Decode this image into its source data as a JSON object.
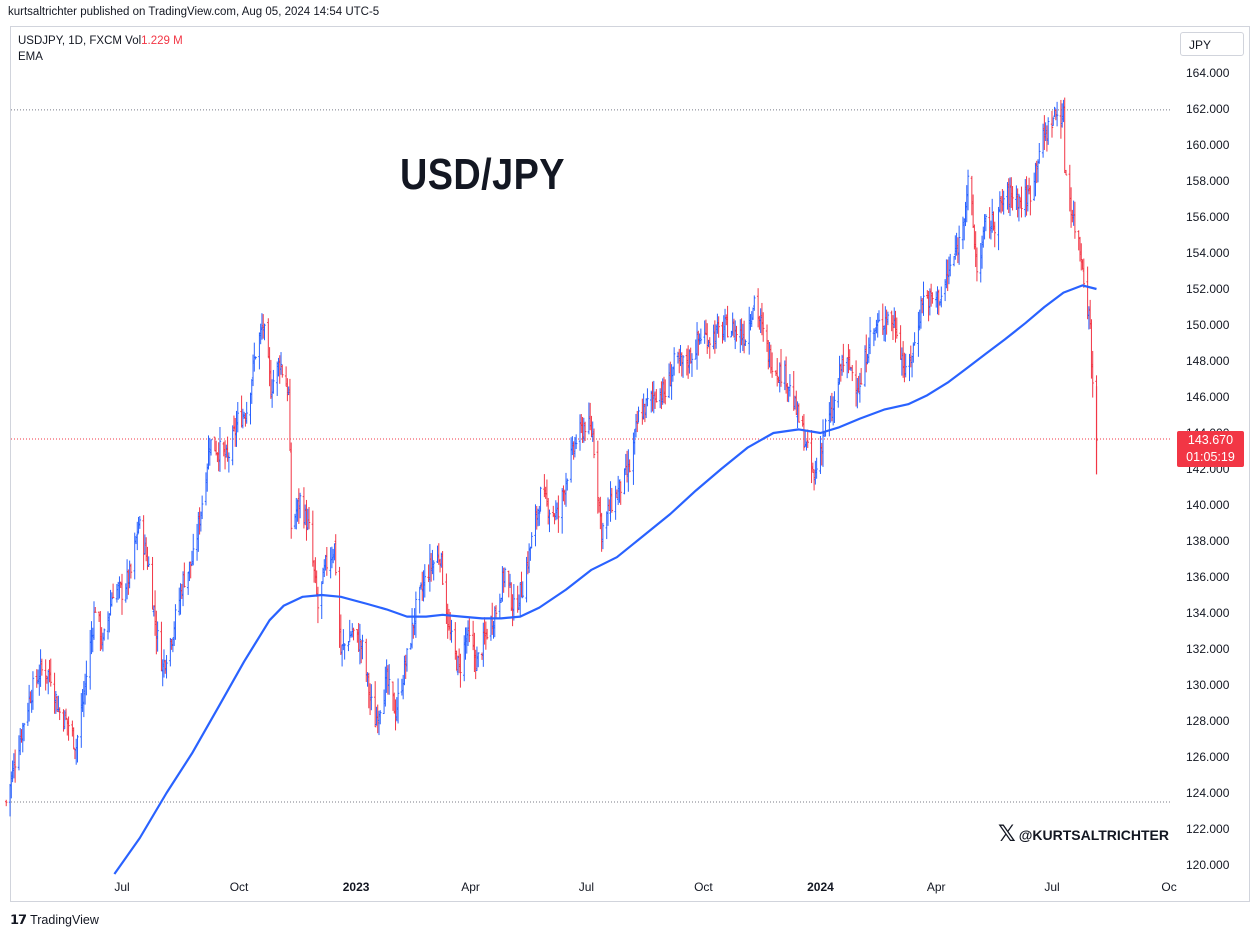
{
  "header": {
    "published": "kurtsaltrichter published on TradingView.com, Aug 05, 2024 14:54 UTC-5"
  },
  "symbol": {
    "name": "USDJPY, 1D, FXCM",
    "vol_label": "Vol",
    "vol_value": "1.229 M"
  },
  "indicator": "EMA",
  "currency_button": "JPY",
  "price_tag": {
    "price": "143.670",
    "countdown": "01:05:19"
  },
  "watermark": {
    "icon": "x-logo-icon",
    "handle": "@KURTSALTRICHTER"
  },
  "footer": {
    "icon": "tradingview-logo-icon",
    "brand": "TradingView"
  },
  "colors": {
    "up": "#2962ff",
    "down": "#f23645",
    "ema": "#2962ff",
    "grid_dotted": "#787b86"
  },
  "chart_data": {
    "type": "line",
    "title": "USD/JPY",
    "xlabel": "",
    "ylabel": "",
    "ylim": [
      119,
      165
    ],
    "y_ticks": [
      "120.000",
      "122.000",
      "124.000",
      "126.000",
      "128.000",
      "130.000",
      "132.000",
      "134.000",
      "136.000",
      "138.000",
      "140.000",
      "142.000",
      "144.000",
      "146.000",
      "148.000",
      "150.000",
      "152.000",
      "154.000",
      "156.000",
      "158.000",
      "160.000",
      "162.000",
      "164.000"
    ],
    "x_ticks": [
      {
        "date": "2022-07-01",
        "label": "Jul",
        "bold": false
      },
      {
        "date": "2022-10-01",
        "label": "Oct",
        "bold": false
      },
      {
        "date": "2023-01-01",
        "label": "2023",
        "bold": true
      },
      {
        "date": "2023-04-01",
        "label": "Apr",
        "bold": false
      },
      {
        "date": "2023-07-01",
        "label": "Jul",
        "bold": false
      },
      {
        "date": "2023-10-01",
        "label": "Oct",
        "bold": false
      },
      {
        "date": "2024-01-01",
        "label": "2024",
        "bold": true
      },
      {
        "date": "2024-04-01",
        "label": "Apr",
        "bold": false
      },
      {
        "date": "2024-07-01",
        "label": "Jul",
        "bold": false
      },
      {
        "date": "2024-10-01",
        "label": "Oc",
        "bold": false
      }
    ],
    "xlim": [
      "2022-04-01",
      "2024-11-20"
    ],
    "horizontal_lines": [
      {
        "y": 161.95,
        "style": "dotted",
        "color": "#787b86"
      },
      {
        "y": 123.5,
        "style": "dotted",
        "color": "#787b86"
      },
      {
        "y": 143.67,
        "style": "dotted",
        "color": "#f23645"
      }
    ],
    "series": [
      {
        "name": "USDJPY",
        "style": "ohlc-bars",
        "points": [
          [
            "2022-04-01",
            123.5
          ],
          [
            "2022-04-10",
            126.5
          ],
          [
            "2022-04-20",
            129.5
          ],
          [
            "2022-04-28",
            130.8
          ],
          [
            "2022-05-06",
            130.6
          ],
          [
            "2022-05-12",
            128.6
          ],
          [
            "2022-05-20",
            127.8
          ],
          [
            "2022-05-26",
            126.6
          ],
          [
            "2022-06-02",
            130.0
          ],
          [
            "2022-06-10",
            134.4
          ],
          [
            "2022-06-16",
            132.2
          ],
          [
            "2022-06-24",
            135.3
          ],
          [
            "2022-07-01",
            135.2
          ],
          [
            "2022-07-08",
            136.2
          ],
          [
            "2022-07-14",
            139.0
          ],
          [
            "2022-07-22",
            136.6
          ],
          [
            "2022-07-28",
            133.0
          ],
          [
            "2022-08-02",
            131.0
          ],
          [
            "2022-08-10",
            133.0
          ],
          [
            "2022-08-18",
            135.8
          ],
          [
            "2022-08-26",
            137.0
          ],
          [
            "2022-09-02",
            140.2
          ],
          [
            "2022-09-08",
            143.5
          ],
          [
            "2022-09-16",
            143.0
          ],
          [
            "2022-09-22",
            142.5
          ],
          [
            "2022-09-30",
            144.7
          ],
          [
            "2022-10-07",
            145.3
          ],
          [
            "2022-10-14",
            148.5
          ],
          [
            "2022-10-20",
            150.0
          ],
          [
            "2022-10-26",
            146.5
          ],
          [
            "2022-11-02",
            148.0
          ],
          [
            "2022-11-09",
            146.2
          ],
          [
            "2022-11-11",
            138.8
          ],
          [
            "2022-11-18",
            140.3
          ],
          [
            "2022-11-25",
            138.6
          ],
          [
            "2022-12-02",
            134.3
          ],
          [
            "2022-12-08",
            136.6
          ],
          [
            "2022-12-15",
            137.7
          ],
          [
            "2022-12-20",
            131.8
          ],
          [
            "2022-12-29",
            133.0
          ],
          [
            "2023-01-06",
            132.0
          ],
          [
            "2023-01-12",
            129.2
          ],
          [
            "2023-01-16",
            128.0
          ],
          [
            "2023-01-25",
            130.2
          ],
          [
            "2023-02-01",
            128.5
          ],
          [
            "2023-02-10",
            131.5
          ],
          [
            "2023-02-17",
            134.2
          ],
          [
            "2023-02-27",
            136.4
          ],
          [
            "2023-03-08",
            137.3
          ],
          [
            "2023-03-15",
            133.0
          ],
          [
            "2023-03-23",
            130.8
          ],
          [
            "2023-03-29",
            132.8
          ],
          [
            "2023-04-06",
            131.2
          ],
          [
            "2023-04-14",
            133.0
          ],
          [
            "2023-04-21",
            134.2
          ],
          [
            "2023-04-28",
            136.3
          ],
          [
            "2023-05-05",
            134.2
          ],
          [
            "2023-05-12",
            135.5
          ],
          [
            "2023-05-19",
            138.0
          ],
          [
            "2023-05-26",
            140.5
          ],
          [
            "2023-06-02",
            139.8
          ],
          [
            "2023-06-09",
            139.4
          ],
          [
            "2023-06-16",
            141.8
          ],
          [
            "2023-06-23",
            143.6
          ],
          [
            "2023-06-30",
            144.5
          ],
          [
            "2023-07-06",
            144.0
          ],
          [
            "2023-07-13",
            138.5
          ],
          [
            "2023-07-20",
            140.0
          ],
          [
            "2023-07-28",
            141.0
          ],
          [
            "2023-08-04",
            142.0
          ],
          [
            "2023-08-11",
            144.9
          ],
          [
            "2023-08-18",
            145.6
          ],
          [
            "2023-08-25",
            146.3
          ],
          [
            "2023-09-01",
            146.2
          ],
          [
            "2023-09-08",
            147.8
          ],
          [
            "2023-09-15",
            147.8
          ],
          [
            "2023-09-22",
            148.4
          ],
          [
            "2023-09-29",
            149.4
          ],
          [
            "2023-10-06",
            149.3
          ],
          [
            "2023-10-13",
            149.6
          ],
          [
            "2023-10-20",
            149.9
          ],
          [
            "2023-10-27",
            149.6
          ],
          [
            "2023-11-03",
            149.4
          ],
          [
            "2023-11-10",
            151.5
          ],
          [
            "2023-11-14",
            150.3
          ],
          [
            "2023-11-21",
            148.4
          ],
          [
            "2023-11-28",
            147.5
          ],
          [
            "2023-12-05",
            147.2
          ],
          [
            "2023-12-12",
            145.4
          ],
          [
            "2023-12-19",
            143.8
          ],
          [
            "2023-12-27",
            141.4
          ],
          [
            "2024-01-04",
            144.2
          ],
          [
            "2024-01-11",
            145.2
          ],
          [
            "2024-01-18",
            148.0
          ],
          [
            "2024-01-25",
            147.6
          ],
          [
            "2024-02-01",
            146.4
          ],
          [
            "2024-02-08",
            149.2
          ],
          [
            "2024-02-15",
            149.9
          ],
          [
            "2024-02-22",
            150.5
          ],
          [
            "2024-03-01",
            149.9
          ],
          [
            "2024-03-08",
            147.1
          ],
          [
            "2024-03-15",
            149.0
          ],
          [
            "2024-03-21",
            151.5
          ],
          [
            "2024-03-28",
            151.4
          ],
          [
            "2024-04-05",
            151.6
          ],
          [
            "2024-04-12",
            153.2
          ],
          [
            "2024-04-19",
            154.6
          ],
          [
            "2024-04-26",
            157.8
          ],
          [
            "2024-04-29",
            156.2
          ],
          [
            "2024-05-03",
            153.0
          ],
          [
            "2024-05-10",
            155.6
          ],
          [
            "2024-05-17",
            155.7
          ],
          [
            "2024-05-24",
            157.0
          ],
          [
            "2024-05-31",
            157.3
          ],
          [
            "2024-06-07",
            156.8
          ],
          [
            "2024-06-14",
            157.4
          ],
          [
            "2024-06-21",
            159.8
          ],
          [
            "2024-06-28",
            160.9
          ],
          [
            "2024-07-03",
            161.7
          ],
          [
            "2024-07-10",
            161.6
          ],
          [
            "2024-07-11",
            158.9
          ],
          [
            "2024-07-17",
            156.2
          ],
          [
            "2024-07-24",
            153.9
          ],
          [
            "2024-07-31",
            150.0
          ],
          [
            "2024-08-02",
            146.5
          ],
          [
            "2024-08-05",
            143.67
          ]
        ]
      },
      {
        "name": "EMA",
        "style": "line",
        "points": [
          [
            "2022-06-25",
            119.5
          ],
          [
            "2022-07-15",
            121.5
          ],
          [
            "2022-08-05",
            124.0
          ],
          [
            "2022-08-25",
            126.2
          ],
          [
            "2022-09-15",
            128.8
          ],
          [
            "2022-10-05",
            131.3
          ],
          [
            "2022-10-25",
            133.6
          ],
          [
            "2022-11-05",
            134.4
          ],
          [
            "2022-11-20",
            134.9
          ],
          [
            "2022-12-05",
            135.0
          ],
          [
            "2022-12-20",
            134.9
          ],
          [
            "2023-01-10",
            134.5
          ],
          [
            "2023-01-25",
            134.2
          ],
          [
            "2023-02-10",
            133.8
          ],
          [
            "2023-02-25",
            133.8
          ],
          [
            "2023-03-10",
            133.9
          ],
          [
            "2023-03-25",
            133.8
          ],
          [
            "2023-04-10",
            133.7
          ],
          [
            "2023-04-25",
            133.7
          ],
          [
            "2023-05-10",
            133.8
          ],
          [
            "2023-05-25",
            134.3
          ],
          [
            "2023-06-15",
            135.3
          ],
          [
            "2023-07-05",
            136.4
          ],
          [
            "2023-07-25",
            137.1
          ],
          [
            "2023-08-15",
            138.3
          ],
          [
            "2023-09-05",
            139.5
          ],
          [
            "2023-09-25",
            140.8
          ],
          [
            "2023-10-15",
            142.0
          ],
          [
            "2023-11-05",
            143.2
          ],
          [
            "2023-11-25",
            144.0
          ],
          [
            "2023-12-15",
            144.2
          ],
          [
            "2024-01-01",
            144.0
          ],
          [
            "2024-01-15",
            144.3
          ],
          [
            "2024-02-01",
            144.8
          ],
          [
            "2024-02-20",
            145.3
          ],
          [
            "2024-03-10",
            145.6
          ],
          [
            "2024-03-25",
            146.1
          ],
          [
            "2024-04-10",
            146.8
          ],
          [
            "2024-04-25",
            147.6
          ],
          [
            "2024-05-10",
            148.4
          ],
          [
            "2024-05-25",
            149.2
          ],
          [
            "2024-06-10",
            150.1
          ],
          [
            "2024-06-25",
            151.0
          ],
          [
            "2024-07-10",
            151.8
          ],
          [
            "2024-07-25",
            152.2
          ],
          [
            "2024-08-05",
            152.0
          ]
        ]
      }
    ]
  }
}
